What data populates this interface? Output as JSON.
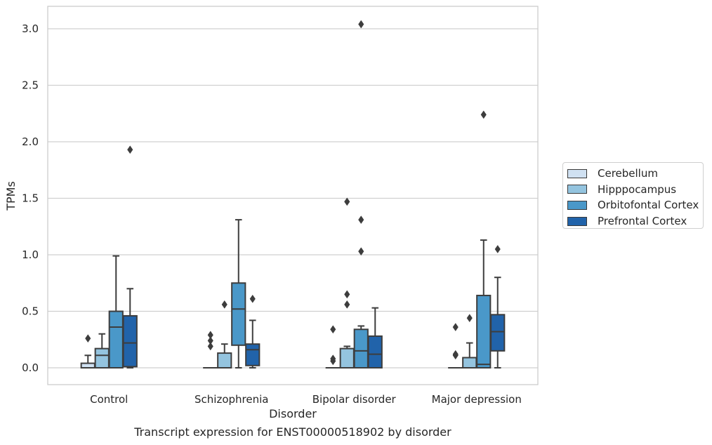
{
  "caption": "Transcript expression for ENST00000518902 by disorder",
  "chart_data": {
    "type": "box",
    "xlabel": "Disorder",
    "ylabel": "TPMs",
    "ylim": [
      -0.15,
      3.2
    ],
    "yticks": [
      0.0,
      0.5,
      1.0,
      1.5,
      2.0,
      2.5,
      3.0
    ],
    "ytick_labels": [
      "0.0",
      "0.5",
      "1.0",
      "1.5",
      "2.0",
      "2.5",
      "3.0"
    ],
    "grid": "horizontal",
    "legend_position": "right",
    "categories": [
      "Control",
      "Schizophrenia",
      "Bipolar disorder",
      "Major depression"
    ],
    "series": [
      {
        "name": "Cerebellum",
        "color": "#d0e1f2",
        "boxes": [
          {
            "whislo": 0.0,
            "q1": 0.0,
            "med": 0.0,
            "q3": 0.04,
            "whishi": 0.11,
            "fliers": [
              0.26
            ]
          },
          {
            "whislo": 0.0,
            "q1": 0.0,
            "med": 0.0,
            "q3": 0.0,
            "whishi": 0.0,
            "fliers": [
              0.19,
              0.24,
              0.29
            ]
          },
          {
            "whislo": 0.0,
            "q1": 0.0,
            "med": 0.0,
            "q3": 0.0,
            "whishi": 0.0,
            "fliers": [
              0.06,
              0.08,
              0.34
            ]
          },
          {
            "whislo": 0.0,
            "q1": 0.0,
            "med": 0.0,
            "q3": 0.0,
            "whishi": 0.0,
            "fliers": [
              0.11,
              0.12,
              0.36
            ]
          }
        ]
      },
      {
        "name": "Hipppocampus",
        "color": "#94c4df",
        "boxes": [
          {
            "whislo": 0.0,
            "q1": 0.0,
            "med": 0.11,
            "q3": 0.17,
            "whishi": 0.3,
            "fliers": []
          },
          {
            "whislo": 0.0,
            "q1": 0.0,
            "med": 0.0,
            "q3": 0.13,
            "whishi": 0.21,
            "fliers": [
              0.56
            ]
          },
          {
            "whislo": 0.0,
            "q1": 0.0,
            "med": 0.0,
            "q3": 0.17,
            "whishi": 0.19,
            "fliers": [
              0.56,
              0.65,
              1.47
            ]
          },
          {
            "whislo": 0.0,
            "q1": 0.0,
            "med": 0.0,
            "q3": 0.09,
            "whishi": 0.22,
            "fliers": [
              0.44
            ]
          }
        ]
      },
      {
        "name": "Orbitofontal Cortex",
        "color": "#4a98c9",
        "boxes": [
          {
            "whislo": 0.0,
            "q1": 0.0,
            "med": 0.36,
            "q3": 0.5,
            "whishi": 0.99,
            "fliers": []
          },
          {
            "whislo": 0.0,
            "q1": 0.2,
            "med": 0.52,
            "q3": 0.75,
            "whishi": 1.31,
            "fliers": []
          },
          {
            "whislo": 0.0,
            "q1": 0.0,
            "med": 0.15,
            "q3": 0.34,
            "whishi": 0.37,
            "fliers": [
              1.03,
              1.31,
              3.04
            ]
          },
          {
            "whislo": 0.0,
            "q1": 0.0,
            "med": 0.03,
            "q3": 0.64,
            "whishi": 1.13,
            "fliers": [
              2.24
            ]
          }
        ]
      },
      {
        "name": "Prefrontal Cortex",
        "color": "#2163aa",
        "boxes": [
          {
            "whislo": 0.0,
            "q1": 0.01,
            "med": 0.22,
            "q3": 0.46,
            "whishi": 0.7,
            "fliers": [
              1.93
            ]
          },
          {
            "whislo": 0.0,
            "q1": 0.02,
            "med": 0.16,
            "q3": 0.21,
            "whishi": 0.42,
            "fliers": [
              0.61
            ]
          },
          {
            "whislo": 0.0,
            "q1": 0.0,
            "med": 0.12,
            "q3": 0.28,
            "whishi": 0.53,
            "fliers": []
          },
          {
            "whislo": 0.0,
            "q1": 0.15,
            "med": 0.32,
            "q3": 0.47,
            "whishi": 0.8,
            "fliers": [
              1.05
            ]
          }
        ]
      }
    ]
  }
}
